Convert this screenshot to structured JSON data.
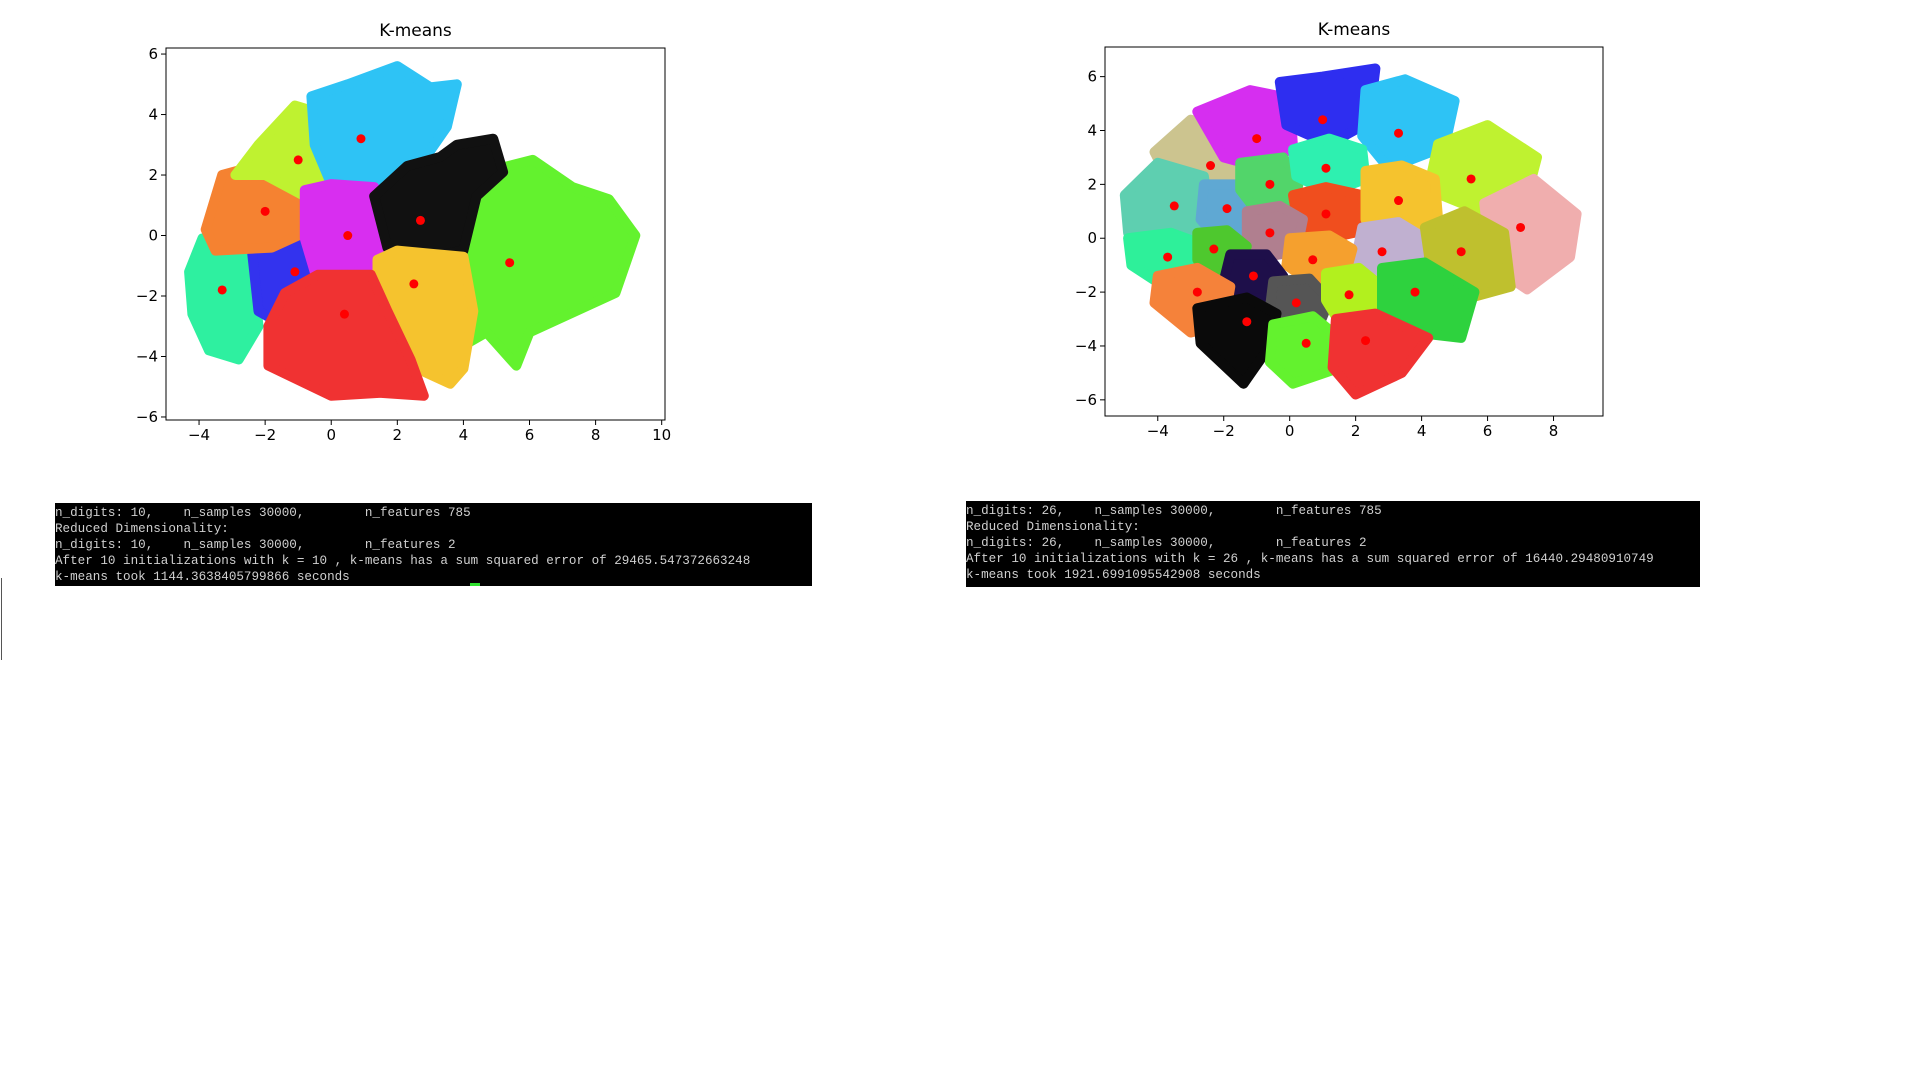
{
  "chart_data": [
    {
      "type": "scatter",
      "title": "K-means",
      "xlim": [
        -5,
        10.1
      ],
      "ylim": [
        -6.1,
        6.2
      ],
      "xticks": [
        {
          "value": -4,
          "label": "−4"
        },
        {
          "value": -2,
          "label": "−2"
        },
        0,
        2,
        4,
        6,
        8,
        10
      ],
      "yticks": [
        {
          "value": -6,
          "label": "−6"
        },
        {
          "value": -4,
          "label": "−4"
        },
        {
          "value": -2,
          "label": "−2"
        },
        0,
        2,
        4,
        6
      ],
      "series": [
        {
          "color": "#2ef0a0",
          "x": [
            -4.3,
            -3.9,
            -3,
            -2.4,
            -2.2,
            -2.8,
            -3.7,
            -4.2
          ],
          "y": [
            -1.2,
            -0.1,
            0,
            -1,
            -3,
            -4.1,
            -3.8,
            -2.6
          ]
        },
        {
          "color": "#3333ee",
          "x": [
            -2.4,
            -1.8,
            -0.7,
            0,
            0,
            -0.6,
            -1.4,
            -2.2
          ],
          "y": [
            -0.5,
            0,
            -0.3,
            -0.5,
            -1.9,
            -2.4,
            -3,
            -2.5
          ]
        },
        {
          "color": "#f58231",
          "x": [
            -3.8,
            -3.3,
            -2.3,
            -1.3,
            -0.7,
            -0.8,
            -1.8,
            -3.5
          ],
          "y": [
            0.2,
            2,
            2.3,
            1.9,
            1.5,
            0.1,
            -0.4,
            -0.5
          ]
        },
        {
          "color": "#bff230",
          "x": [
            -2.9,
            -2.2,
            -1.1,
            -0.2,
            0.4,
            0,
            -0.8,
            -2
          ],
          "y": [
            2,
            3,
            4.3,
            4,
            2.9,
            1.7,
            1.3,
            2
          ]
        },
        {
          "color": "#2ec3f5",
          "x": [
            -0.6,
            0.5,
            2,
            3,
            3.8,
            3.5,
            2.8,
            1.3,
            0,
            -0.5
          ],
          "y": [
            4.6,
            5,
            5.6,
            4.9,
            5,
            3.6,
            2.5,
            1.5,
            1.7,
            3
          ]
        },
        {
          "color": "#d82ef0",
          "x": [
            -0.8,
            0,
            1.3,
            1.8,
            1.4,
            0.5,
            -0.5,
            -0.8
          ],
          "y": [
            1.5,
            1.7,
            1.6,
            0.5,
            -1,
            -1.3,
            -1.2,
            -0.1
          ]
        },
        {
          "color": "#63f22e",
          "x": [
            3.9,
            5,
            6.1,
            7.3,
            8.4,
            9.2,
            8.6,
            6,
            5.6,
            4.7,
            3.9,
            4
          ],
          "y": [
            1.3,
            2.2,
            2.5,
            1.6,
            1.2,
            0,
            -1.9,
            -3.2,
            -4.3,
            -3.2,
            -3.7,
            -0.8
          ]
        },
        {
          "color": "#111111",
          "x": [
            1.3,
            2.3,
            3.3,
            3.8,
            4.9,
            5.2,
            4.4,
            4,
            3,
            1.7
          ],
          "y": [
            1.3,
            2.3,
            2.6,
            3,
            3.2,
            2.1,
            1.3,
            -0.5,
            -0.7,
            -0.4
          ]
        },
        {
          "color": "#f5c32e",
          "x": [
            1.4,
            2,
            3,
            4,
            4.3,
            4,
            3.6,
            2.2,
            1.7,
            1.4
          ],
          "y": [
            -0.8,
            -0.5,
            -0.6,
            -0.7,
            -2.5,
            -4.4,
            -4.9,
            -4.2,
            -3,
            -1.7
          ]
        },
        {
          "color": "#f03232",
          "x": [
            -1.4,
            -0.4,
            1.2,
            1.7,
            2.4,
            2.8,
            1.5,
            0,
            -1.9,
            -1.9
          ],
          "y": [
            -1.9,
            -1.3,
            -1.3,
            -2.5,
            -4.1,
            -5.3,
            -5.2,
            -5.3,
            -4.3,
            -3
          ]
        }
      ],
      "centroids": {
        "color": "#ff0000",
        "x": [
          -3.3,
          -1.1,
          -2,
          -1,
          0.9,
          0.5,
          5.4,
          2.7,
          2.5,
          0.4
        ],
        "y": [
          -1.8,
          -1.2,
          0.8,
          2.5,
          3.2,
          0,
          -0.9,
          0.5,
          -1.6,
          -2.6
        ]
      }
    },
    {
      "type": "scatter",
      "title": "K-means",
      "xlim": [
        -5.6,
        9.5
      ],
      "ylim": [
        -6.6,
        7.1
      ],
      "xticks": [
        {
          "value": -4,
          "label": "−4"
        },
        {
          "value": -2,
          "label": "−2"
        },
        0,
        2,
        4,
        6,
        8
      ],
      "yticks": [
        {
          "value": -6,
          "label": "−6"
        },
        {
          "value": -4,
          "label": "−4"
        },
        {
          "value": -2,
          "label": "−2"
        },
        0,
        2,
        4,
        6
      ],
      "series": [
        {
          "color": "#ccc48f",
          "x": [
            -4.1,
            -3,
            -1.8,
            -1.3,
            -1.5,
            -3.6
          ],
          "y": [
            3.2,
            4.4,
            4,
            3,
            1.8,
            2
          ]
        },
        {
          "color": "#d62ef0",
          "x": [
            -2.8,
            -1.2,
            0,
            0.1,
            -0.8,
            -2
          ],
          "y": [
            4.7,
            5.5,
            5.2,
            3.4,
            2.6,
            3
          ]
        },
        {
          "color": "#2e2ef0",
          "x": [
            -0.3,
            1,
            2.6,
            2.4,
            1.2,
            -0.1
          ],
          "y": [
            5.8,
            6,
            6.3,
            4.3,
            3.5,
            4.2
          ]
        },
        {
          "color": "#2ec3f5",
          "x": [
            2.3,
            3.5,
            5,
            4.7,
            3,
            2.2
          ],
          "y": [
            5.5,
            5.9,
            5.1,
            3.4,
            2.6,
            3.8
          ]
        },
        {
          "color": "#bff230",
          "x": [
            4.5,
            6,
            7.5,
            7.2,
            5.8,
            4.2
          ],
          "y": [
            3.5,
            4.2,
            3,
            1.6,
            1,
            1.8
          ]
        },
        {
          "color": "#f0aeae",
          "x": [
            5.9,
            7.4,
            8.7,
            8.5,
            7.2,
            6.1
          ],
          "y": [
            1.3,
            2.2,
            0.9,
            -0.7,
            -1.9,
            -1
          ]
        },
        {
          "color": "#5ecfb0",
          "x": [
            -5,
            -4,
            -2.6,
            -2.4,
            -3.4,
            -4.9
          ],
          "y": [
            1.6,
            2.8,
            2.3,
            0.4,
            -0.3,
            0.2
          ]
        },
        {
          "color": "#5fa8d3",
          "x": [
            -2.6,
            -1.5,
            -1,
            -1.2,
            -2.2,
            -2.7
          ],
          "y": [
            2,
            2,
            1.3,
            0.3,
            0,
            0.7
          ]
        },
        {
          "color": "#52d56a",
          "x": [
            -1.5,
            -0.2,
            0.3,
            0.1,
            -1,
            -1.5
          ],
          "y": [
            2.8,
            3,
            2.2,
            1.1,
            1,
            1.8
          ]
        },
        {
          "color": "#2ef0b0",
          "x": [
            0.1,
            1.2,
            2.2,
            2.3,
            1.2,
            0.2
          ],
          "y": [
            3.3,
            3.7,
            3.3,
            2.2,
            1.7,
            2.3
          ]
        },
        {
          "color": "#f04e1e",
          "x": [
            0.1,
            1.1,
            2.2,
            2.3,
            1.2,
            0.3
          ],
          "y": [
            1.6,
            1.9,
            1.6,
            0.3,
            0,
            0.2
          ]
        },
        {
          "color": "#f5c32e",
          "x": [
            2.3,
            3.4,
            4.4,
            4.5,
            3.3,
            2.3
          ],
          "y": [
            2.5,
            2.7,
            2.2,
            0.7,
            0.3,
            0.7
          ]
        },
        {
          "color": "#b07f8f",
          "x": [
            -1.3,
            -0.3,
            0.4,
            0.2,
            -0.8,
            -1.3
          ],
          "y": [
            1,
            1.2,
            0.7,
            -0.5,
            -0.7,
            -0.2
          ]
        },
        {
          "color": "#c0b0d0",
          "x": [
            2.2,
            3.3,
            4.1,
            3.8,
            2.7,
            2
          ],
          "y": [
            0.4,
            0.6,
            0,
            -1.4,
            -1.4,
            -0.8
          ]
        },
        {
          "color": "#bfc02e",
          "x": [
            4.1,
            5.3,
            6.5,
            6.7,
            5.5,
            4.3
          ],
          "y": [
            0.4,
            1,
            0.2,
            -1.8,
            -2.2,
            -1.3
          ]
        },
        {
          "color": "#2ef09a",
          "x": [
            -4.9,
            -3.6,
            -2.7,
            -2.9,
            -3.8,
            -4.8
          ],
          "y": [
            0,
            0.2,
            -0.2,
            -1.3,
            -1.8,
            -1
          ]
        },
        {
          "color": "#4ec82e",
          "x": [
            -2.8,
            -1.9,
            -1.3,
            -1.6,
            -2.4,
            -2.8
          ],
          "y": [
            0.2,
            0.3,
            -0.3,
            -1.1,
            -1.3,
            -0.8
          ]
        },
        {
          "color": "#f5a02e",
          "x": [
            0,
            1.2,
            1.9,
            1.7,
            0.6,
            -0.1
          ],
          "y": [
            0,
            0.1,
            -0.4,
            -1.3,
            -1.6,
            -1
          ]
        },
        {
          "color": "#1e0f4a",
          "x": [
            -1.8,
            -0.7,
            -0.2,
            -0.6,
            -1.6,
            -2
          ],
          "y": [
            -0.6,
            -0.6,
            -1.4,
            -2.2,
            -2.3,
            -1.6
          ]
        },
        {
          "color": "#555555",
          "x": [
            -0.5,
            0.6,
            1.2,
            0.9,
            -0.1,
            -0.6
          ],
          "y": [
            -1.6,
            -1.5,
            -2.3,
            -3.2,
            -3.3,
            -2.6
          ]
        },
        {
          "color": "#b2f01e",
          "x": [
            1.1,
            2.1,
            2.8,
            2.5,
            1.5,
            1.1
          ],
          "y": [
            -1.3,
            -1.1,
            -1.8,
            -3,
            -3.1,
            -2.3
          ]
        },
        {
          "color": "#2ed23e",
          "x": [
            2.8,
            4.1,
            5.6,
            5.2,
            3.8,
            2.8
          ],
          "y": [
            -1.1,
            -0.9,
            -2,
            -3.7,
            -3.5,
            -2.8
          ]
        },
        {
          "color": "#f5823a",
          "x": [
            -4,
            -2.8,
            -1.8,
            -2,
            -3,
            -4.1
          ],
          "y": [
            -1.4,
            -1.1,
            -1.8,
            -3.2,
            -3.5,
            -2.4
          ]
        },
        {
          "color": "#0a0a0a",
          "x": [
            -2.8,
            -1.3,
            -0.4,
            -0.6,
            -1.4,
            -2.7
          ],
          "y": [
            -2.6,
            -2.2,
            -2.8,
            -4,
            -5.4,
            -3.9
          ]
        },
        {
          "color": "#63f22e",
          "x": [
            -0.5,
            0.7,
            1.4,
            1.3,
            0.1,
            -0.6
          ],
          "y": [
            -3.2,
            -2.9,
            -3.6,
            -4.9,
            -5.4,
            -4.6
          ]
        },
        {
          "color": "#f03232",
          "x": [
            1.4,
            2.6,
            4.2,
            3.4,
            2,
            1.3
          ],
          "y": [
            -3,
            -2.8,
            -3.7,
            -5,
            -5.8,
            -4.8
          ]
        }
      ],
      "centroids": {
        "color": "#ff0000",
        "x": [
          -2.4,
          -1,
          1,
          3.3,
          5.5,
          7,
          -3.5,
          -1.9,
          -0.6,
          1.1,
          1.1,
          3.3,
          -0.6,
          2.8,
          5.2,
          -3.7,
          -2.3,
          0.7,
          -1.1,
          0.2,
          1.8,
          3.8,
          -2.8,
          -1.3,
          0.5,
          2.3
        ],
        "y": [
          2.7,
          3.7,
          4.4,
          3.9,
          2.2,
          0.4,
          1.2,
          1.1,
          2,
          2.6,
          0.9,
          1.4,
          0.2,
          -0.5,
          -0.5,
          -0.7,
          -0.4,
          -0.8,
          -1.4,
          -2.4,
          -2.1,
          -2,
          -2,
          -3.1,
          -3.9,
          -3.8
        ]
      }
    }
  ],
  "terminals": [
    {
      "lines": [
        "n_digits: 10,    n_samples 30000,        n_features 785",
        "Reduced Dimensionality:",
        "n_digits: 10,    n_samples 30000,        n_features 2",
        "After 10 initializations with k = 10 , k-means has a sum squared error of 29465.547372663248",
        "k-means took 1144.3638405799866 seconds"
      ]
    },
    {
      "lines": [
        "n_digits: 26,    n_samples 30000,        n_features 785",
        "Reduced Dimensionality:",
        "n_digits: 26,    n_samples 30000,        n_features 2",
        "After 10 initializations with k = 26 , k-means has a sum squared error of 16440.29480910749",
        "k-means took 1921.6991095542908 seconds"
      ]
    }
  ]
}
